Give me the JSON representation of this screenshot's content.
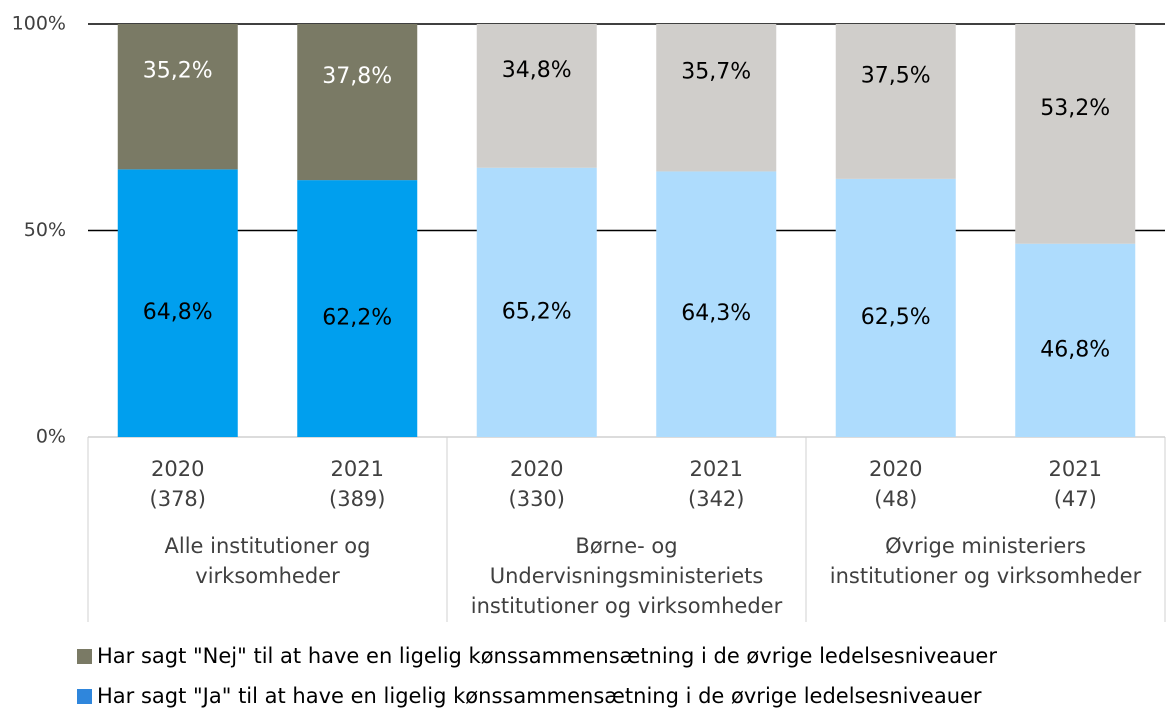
{
  "chart_data": {
    "type": "stacked_bar",
    "groups": [
      {
        "label": [
          "Alle institutioner og",
          "virksomheder"
        ],
        "categories": [
          [
            "2020",
            "(378)"
          ],
          [
            "2021",
            "(389)"
          ]
        ]
      },
      {
        "label": [
          "Børne- og",
          "Undervisningsministeriets",
          "institutioner og virksomheder"
        ],
        "categories": [
          [
            "2020",
            "(330)"
          ],
          [
            "2021",
            "(342)"
          ]
        ]
      },
      {
        "label": [
          "Øvrige ministeriers",
          "institutioner og virksomheder"
        ],
        "categories": [
          [
            "2020",
            "(48)"
          ],
          [
            "2021",
            "(47)"
          ]
        ]
      }
    ],
    "series": [
      {
        "name": "Har sagt \"Ja\" til at have en ligelig kønssammensætning i de øvrige ledelsesniveauer",
        "color": "#2f86dc",
        "colors": [
          "#009fee",
          "#009fee",
          "#aedcfd",
          "#aedcfd",
          "#aedcfd",
          "#aedcfd"
        ],
        "label_colors": [
          "#000000",
          "#000000",
          "#000000",
          "#000000",
          "#000000",
          "#000000"
        ],
        "values": [
          64.8,
          62.2,
          65.2,
          64.3,
          62.5,
          46.8
        ],
        "value_labels": [
          "64,8%",
          "62,2%",
          "65,2%",
          "64,3%",
          "62,5%",
          "46,8%"
        ]
      },
      {
        "name": "Har sagt \"Nej\" til at have en ligelig kønssammensætning i de øvrige ledelsesniveauer",
        "color": "#7a7a65",
        "colors": [
          "#7a7a65",
          "#7a7a65",
          "#d0cecb",
          "#d0cecb",
          "#d0cecb",
          "#d0cecb"
        ],
        "label_colors": [
          "#ffffff",
          "#ffffff",
          "#000000",
          "#000000",
          "#000000",
          "#000000"
        ],
        "values": [
          35.2,
          37.8,
          34.8,
          35.7,
          37.5,
          53.2
        ],
        "value_labels": [
          "35,2%",
          "37,8%",
          "34,8%",
          "35,7%",
          "37,5%",
          "53,2%"
        ]
      }
    ],
    "ylim": [
      0,
      100
    ],
    "yticks": [
      {
        "value": 0,
        "label": "0%"
      },
      {
        "value": 50,
        "label": "50%"
      },
      {
        "value": 100,
        "label": "100%"
      }
    ],
    "grid": true
  }
}
